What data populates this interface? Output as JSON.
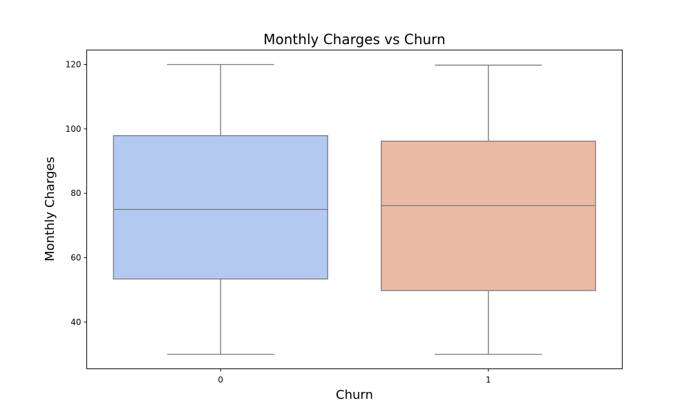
{
  "chart_data": {
    "type": "box",
    "title": "Monthly Charges vs Churn",
    "xlabel": "Churn",
    "ylabel": "Monthly Charges",
    "ylim": [
      25.5,
      124.5
    ],
    "yticks": [
      40,
      60,
      80,
      100,
      120
    ],
    "grid": false,
    "categories": [
      "0",
      "1"
    ],
    "boxes": [
      {
        "category": "0",
        "min": 30.0,
        "q1": 53.4,
        "median": 75.0,
        "q3": 97.9,
        "max": 120.0,
        "color": "#b4c9f2"
      },
      {
        "category": "1",
        "min": 30.0,
        "q1": 49.8,
        "median": 76.2,
        "q3": 96.2,
        "max": 119.8,
        "color": "#ebbaa5"
      }
    ],
    "line_color": "#777777"
  }
}
